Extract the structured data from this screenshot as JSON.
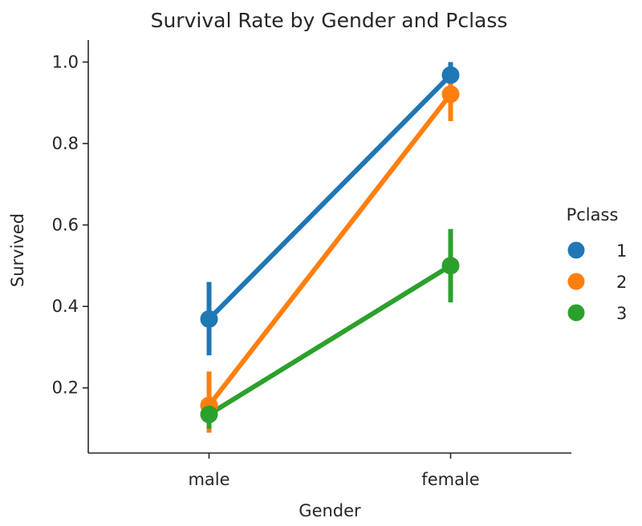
{
  "chart_data": {
    "type": "line",
    "title": "Survival Rate by Gender and Pclass",
    "xlabel": "Gender",
    "ylabel": "Survived",
    "categories": [
      "male",
      "female"
    ],
    "ylim": [
      0.04,
      1.05
    ],
    "yticks": [
      0.2,
      0.4,
      0.6,
      0.8,
      1.0
    ],
    "ytick_labels": [
      "0.2",
      "0.4",
      "0.6",
      "0.8",
      "1.0"
    ],
    "grid": false,
    "legend": {
      "title": "Pclass",
      "placement": "right",
      "entries": [
        "1",
        "2",
        "3"
      ]
    },
    "series": [
      {
        "name": "1",
        "color": "#1f77b4",
        "values": [
          0.369,
          0.968
        ],
        "ci_low": [
          0.28,
          0.91
        ],
        "ci_high": [
          0.46,
          1.0
        ]
      },
      {
        "name": "2",
        "color": "#ff7f0e",
        "values": [
          0.157,
          0.921
        ],
        "ci_low": [
          0.09,
          0.855
        ],
        "ci_high": [
          0.24,
          0.975
        ]
      },
      {
        "name": "3",
        "color": "#2ca02c",
        "values": [
          0.135,
          0.5
        ],
        "ci_low": [
          0.1,
          0.41
        ],
        "ci_high": [
          0.175,
          0.59
        ]
      }
    ]
  }
}
